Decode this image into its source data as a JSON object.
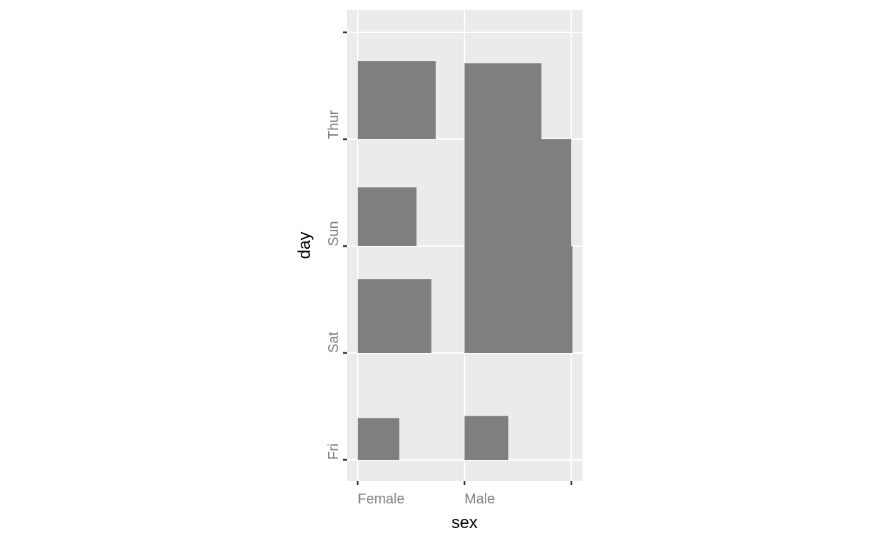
{
  "chart_data": {
    "type": "mosaic",
    "xlabel": "sex",
    "ylabel": "day",
    "x_categories": [
      "Female",
      "Male"
    ],
    "y_categories": [
      "Fri",
      "Sat",
      "Sun",
      "Thur"
    ],
    "grid": true,
    "legend": "none",
    "colors": {
      "panel": "#ebebeb",
      "grid": "#ffffff",
      "bar": "#7f7f7f",
      "tick_label": "#7f7f7f",
      "axis_title": "#000000"
    },
    "cells": [
      {
        "sex": "Female",
        "day": "Fri",
        "width": 0.39,
        "height": 0.39
      },
      {
        "sex": "Female",
        "day": "Sat",
        "width": 0.69,
        "height": 0.69
      },
      {
        "sex": "Female",
        "day": "Sun",
        "width": 0.55,
        "height": 0.55
      },
      {
        "sex": "Female",
        "day": "Thur",
        "width": 0.73,
        "height": 0.73
      },
      {
        "sex": "Male",
        "day": "Fri",
        "width": 0.41,
        "height": 0.41
      },
      {
        "sex": "Male",
        "day": "Sat",
        "width": 1.01,
        "height": 1.0
      },
      {
        "sex": "Male",
        "day": "Sun",
        "width": 1.0,
        "height": 1.0
      },
      {
        "sex": "Male",
        "day": "Thur",
        "width": 0.72,
        "height": 0.71
      }
    ]
  }
}
